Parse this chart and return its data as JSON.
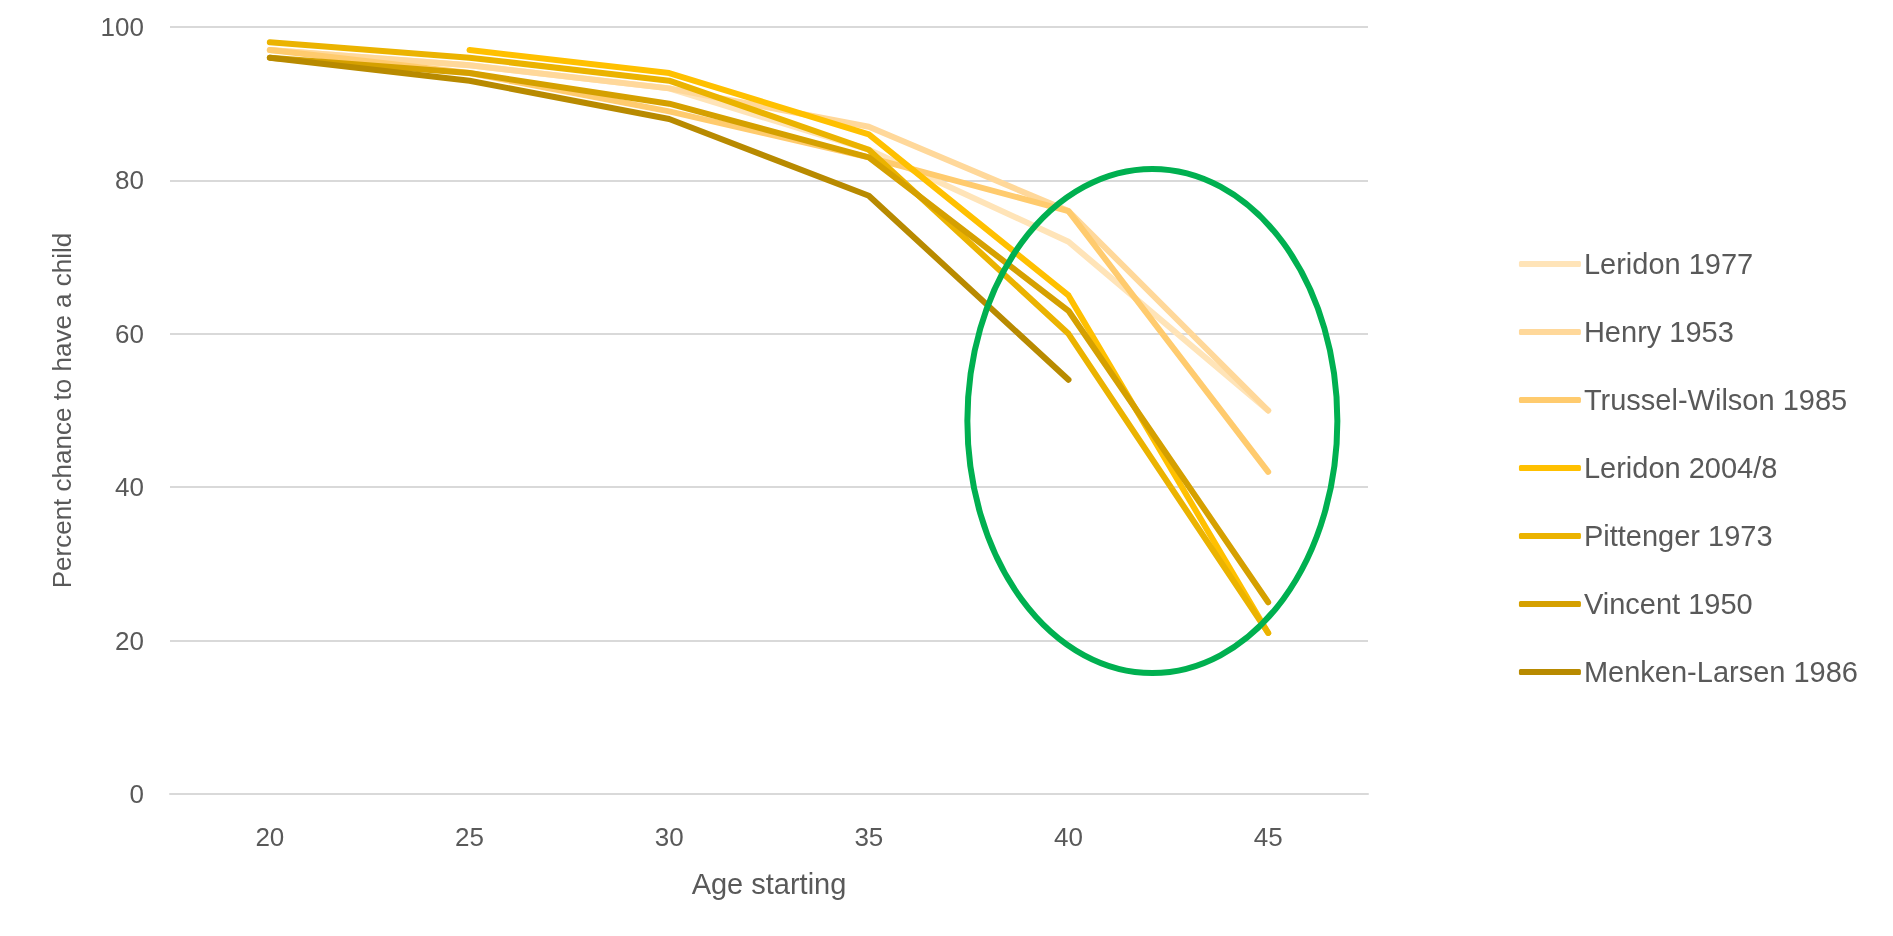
{
  "chart_data": {
    "type": "line",
    "xlabel": "Age starting",
    "ylabel": "Percent chance to have a child",
    "categories": [
      "20",
      "25",
      "30",
      "35",
      "40",
      "45"
    ],
    "series": [
      {
        "name": "Leridon 1977",
        "color": "#ffe4b8",
        "values": [
          97,
          95,
          92,
          84,
          72,
          50
        ]
      },
      {
        "name": "Henry 1953",
        "color": "#ffd89a",
        "values": [
          97,
          95,
          92,
          87,
          76,
          50
        ]
      },
      {
        "name": "Trussel-Wilson 1985",
        "color": "#ffcb6e",
        "values": [
          97,
          94,
          89,
          83,
          76,
          42
        ]
      },
      {
        "name": "Leridon 2004/8",
        "color": "#ffc000",
        "values": [
          null,
          97,
          94,
          86,
          65,
          21
        ]
      },
      {
        "name": "Pittenger 1973",
        "color": "#ebb300",
        "values": [
          98,
          96,
          93,
          84,
          60,
          21
        ]
      },
      {
        "name": "Vincent 1950",
        "color": "#d5a000",
        "values": [
          96,
          94,
          90,
          83,
          63,
          25
        ]
      },
      {
        "name": "Menken-Larsen 1986",
        "color": "#b88a00",
        "values": [
          96,
          93,
          88,
          78,
          54,
          null
        ]
      }
    ],
    "ylim": [
      0,
      100
    ],
    "yticks": [
      0,
      20,
      40,
      60,
      80,
      100
    ],
    "grid": "y",
    "legend": "right",
    "marker": "none",
    "line_style": "solid"
  }
}
